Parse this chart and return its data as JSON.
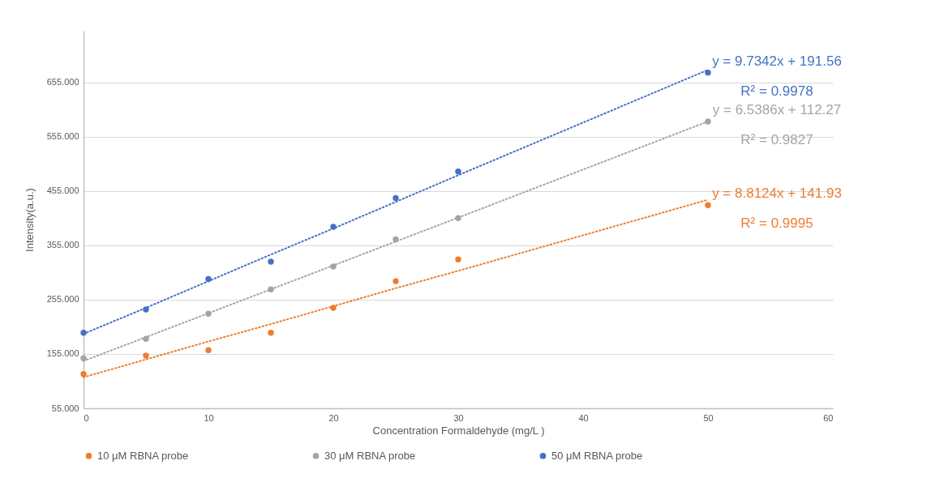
{
  "chart_data": {
    "type": "scatter",
    "xlabel": "Concentration Formaldehyde (mg/L )",
    "ylabel": "Intensity(a.u.)",
    "xlim": [
      0,
      60
    ],
    "xticks": [
      0,
      10,
      20,
      30,
      40,
      50,
      60
    ],
    "ylim": [
      55,
      750
    ],
    "yticks": [
      {
        "value": 55,
        "label": "55.000"
      },
      {
        "value": 155,
        "label": "155.000"
      },
      {
        "value": 255,
        "label": "255.000"
      },
      {
        "value": 355,
        "label": "355.000"
      },
      {
        "value": 455,
        "label": "455.000"
      },
      {
        "value": 555,
        "label": "555.000"
      },
      {
        "value": 655,
        "label": "655.000"
      }
    ],
    "x": [
      0,
      5,
      10,
      15,
      20,
      25,
      30,
      50
    ],
    "grid": "y",
    "legend": "bottom",
    "marker": "circle",
    "series": [
      {
        "name": "10 μM RBNA probe",
        "color": "#ed7d31",
        "values": [
          118,
          152,
          162,
          194,
          240,
          289,
          329,
          429
        ]
      },
      {
        "name": "30 μM RBNA probe",
        "color": "#a5a5a5",
        "values": [
          147,
          183,
          229,
          274,
          316,
          366,
          405,
          583
        ]
      },
      {
        "name": "50 μM RBNA probe",
        "color": "#4472c4",
        "values": [
          194,
          237,
          293,
          325,
          389,
          442,
          491,
          673
        ]
      },
      {
        "type": "line",
        "color": "#ed7d31",
        "values": [
          112,
          145,
          178,
          210,
          243,
          276,
          308,
          439
        ],
        "line_style": "dotted",
        "marker": "none"
      },
      {
        "type": "line",
        "color": "#a5a5a5",
        "values": [
          142,
          186,
          230,
          274,
          318,
          362,
          406,
          583
        ],
        "line_style": "dotted",
        "marker": "none"
      },
      {
        "type": "line",
        "color": "#4472c4",
        "values": [
          192,
          240,
          289,
          338,
          386,
          435,
          484,
          678
        ],
        "line_style": "dotted",
        "marker": "none"
      }
    ],
    "annotations": [
      "y = 9.7342x + 191.56",
      "R² = 0.9978",
      "y = 6.5386x + 112.27",
      "R² = 0.9827",
      "y = 8.8124x + 141.93",
      "R² = 0.9995"
    ]
  }
}
